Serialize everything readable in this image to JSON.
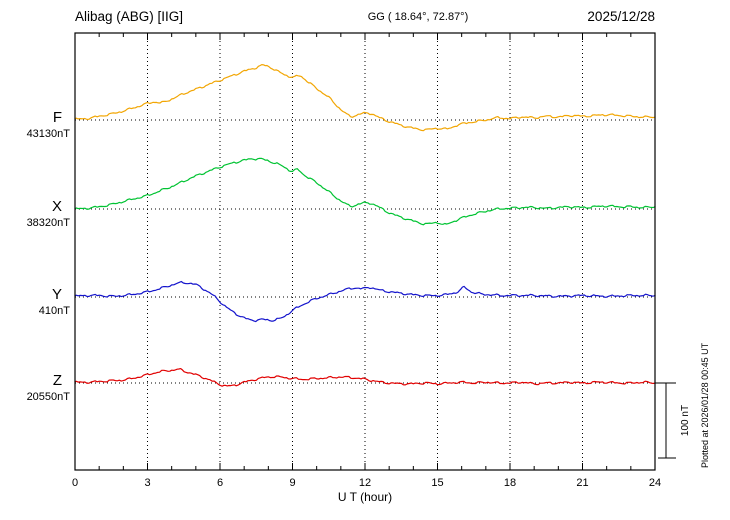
{
  "header": {
    "station": "Alibag (ABG)  [IIG]",
    "coords": "GG ( 18.64°, 72.87°)",
    "date": "2025/12/28"
  },
  "axis": {
    "x_ticks": [
      "0",
      "3",
      "6",
      "9",
      "12",
      "15",
      "18",
      "21",
      "24"
    ],
    "x_label": "U T (hour)"
  },
  "scalebar": {
    "label": "100 nT",
    "nT": 100
  },
  "footer_note": "Plotted at 2026/01/28 00:45 UT",
  "chart_data": {
    "type": "line",
    "title": "Alibag (ABG) [IIG] magnetogram 2025/12/28",
    "xlabel": "U T (hour)",
    "x_range": [
      0,
      24
    ],
    "x_tick_hours": [
      0,
      3,
      6,
      9,
      12,
      15,
      18,
      21,
      24
    ],
    "units": "nT offset from channel baseline",
    "scale_bar_nT": 100,
    "grid": "dotted vertical every 3 h, dotted horizontal baseline per channel",
    "series": [
      {
        "id": "F",
        "name": "F",
        "baseline_nT": 43130,
        "baseline_label": "43130nT",
        "color": "#f2a604",
        "points": [
          [
            0,
            1
          ],
          [
            0.5,
            2
          ],
          [
            1,
            5
          ],
          [
            1.5,
            8
          ],
          [
            2,
            12
          ],
          [
            2.5,
            17
          ],
          [
            3,
            22
          ],
          [
            3.3,
            24
          ],
          [
            3.6,
            23
          ],
          [
            4,
            28
          ],
          [
            4.5,
            35
          ],
          [
            5,
            41
          ],
          [
            5.5,
            47
          ],
          [
            6,
            53
          ],
          [
            6.5,
            59
          ],
          [
            7,
            65
          ],
          [
            7.5,
            70
          ],
          [
            7.8,
            73
          ],
          [
            8.1,
            70
          ],
          [
            8.5,
            63
          ],
          [
            9,
            57
          ],
          [
            9.3,
            59
          ],
          [
            9.6,
            52
          ],
          [
            10,
            42
          ],
          [
            10.5,
            30
          ],
          [
            11,
            14
          ],
          [
            11.4,
            5
          ],
          [
            11.8,
            8
          ],
          [
            12.2,
            9
          ],
          [
            12.6,
            3
          ],
          [
            13,
            -2
          ],
          [
            13.5,
            -7
          ],
          [
            14,
            -11
          ],
          [
            14.5,
            -13
          ],
          [
            15,
            -11
          ],
          [
            15.4,
            -12
          ],
          [
            15.8,
            -7
          ],
          [
            16.2,
            -4
          ],
          [
            16.6,
            -2
          ],
          [
            17,
            0
          ],
          [
            17.5,
            3
          ],
          [
            18,
            2
          ],
          [
            18.5,
            4
          ],
          [
            19,
            3
          ],
          [
            19.5,
            5
          ],
          [
            20,
            4
          ],
          [
            20.5,
            6
          ],
          [
            21,
            5
          ],
          [
            21.5,
            6
          ],
          [
            22,
            7
          ],
          [
            22.5,
            6
          ],
          [
            23,
            5
          ],
          [
            23.5,
            4
          ],
          [
            24,
            4
          ]
        ]
      },
      {
        "id": "X",
        "name": "X",
        "baseline_nT": 38320,
        "baseline_label": "38320nT",
        "color": "#00c332",
        "points": [
          [
            0,
            0
          ],
          [
            0.5,
            1
          ],
          [
            1,
            3
          ],
          [
            1.5,
            6
          ],
          [
            2,
            10
          ],
          [
            2.5,
            14
          ],
          [
            3,
            18
          ],
          [
            3.5,
            24
          ],
          [
            4,
            30
          ],
          [
            4.5,
            37
          ],
          [
            5,
            44
          ],
          [
            5.5,
            50
          ],
          [
            6,
            56
          ],
          [
            6.5,
            61
          ],
          [
            7,
            65
          ],
          [
            7.4,
            67
          ],
          [
            7.8,
            66
          ],
          [
            8.2,
            62
          ],
          [
            8.6,
            57
          ],
          [
            9,
            50
          ],
          [
            9.2,
            53
          ],
          [
            9.5,
            45
          ],
          [
            10,
            35
          ],
          [
            10.5,
            23
          ],
          [
            11,
            11
          ],
          [
            11.4,
            4
          ],
          [
            11.8,
            7
          ],
          [
            12.2,
            8
          ],
          [
            12.6,
            2
          ],
          [
            13,
            -5
          ],
          [
            13.5,
            -11
          ],
          [
            14,
            -16
          ],
          [
            14.5,
            -20
          ],
          [
            15,
            -18
          ],
          [
            15.3,
            -21
          ],
          [
            15.7,
            -16
          ],
          [
            16.1,
            -11
          ],
          [
            16.5,
            -7
          ],
          [
            17,
            -3
          ],
          [
            17.5,
            0
          ],
          [
            18,
            1
          ],
          [
            18.5,
            2
          ],
          [
            19,
            2
          ],
          [
            19.5,
            1
          ],
          [
            20,
            2
          ],
          [
            20.5,
            3
          ],
          [
            21,
            2
          ],
          [
            21.5,
            3
          ],
          [
            22,
            4
          ],
          [
            22.5,
            3
          ],
          [
            23,
            3
          ],
          [
            23.5,
            2
          ],
          [
            24,
            3
          ]
        ]
      },
      {
        "id": "Y",
        "name": "Y",
        "baseline_nT": 410,
        "baseline_label": "410nT",
        "color": "#1414cc",
        "points": [
          [
            0,
            1
          ],
          [
            0.5,
            2
          ],
          [
            1,
            2
          ],
          [
            1.5,
            1
          ],
          [
            2,
            2
          ],
          [
            2.5,
            4
          ],
          [
            3,
            7
          ],
          [
            3.5,
            11
          ],
          [
            4,
            16
          ],
          [
            4.4,
            19
          ],
          [
            4.8,
            18
          ],
          [
            5.1,
            15
          ],
          [
            5.4,
            9
          ],
          [
            5.8,
            0
          ],
          [
            6.2,
            -12
          ],
          [
            6.6,
            -21
          ],
          [
            7,
            -28
          ],
          [
            7.4,
            -31
          ],
          [
            7.8,
            -30
          ],
          [
            8.2,
            -31
          ],
          [
            8.6,
            -27
          ],
          [
            9,
            -18
          ],
          [
            9.5,
            -9
          ],
          [
            10,
            -2
          ],
          [
            10.5,
            3
          ],
          [
            11,
            8
          ],
          [
            11.5,
            12
          ],
          [
            11.9,
            11
          ],
          [
            12.2,
            13
          ],
          [
            12.5,
            10
          ],
          [
            13,
            7
          ],
          [
            13.5,
            5
          ],
          [
            14,
            3
          ],
          [
            14.5,
            2
          ],
          [
            15,
            2
          ],
          [
            15.5,
            4
          ],
          [
            15.9,
            8
          ],
          [
            16.1,
            13
          ],
          [
            16.4,
            7
          ],
          [
            16.8,
            4
          ],
          [
            17.2,
            3
          ],
          [
            17.6,
            2
          ],
          [
            18,
            2
          ],
          [
            19,
            2
          ],
          [
            20,
            1
          ],
          [
            21,
            2
          ],
          [
            22,
            1
          ],
          [
            23,
            2
          ],
          [
            24,
            2
          ]
        ]
      },
      {
        "id": "Z",
        "name": "Z",
        "baseline_nT": 20550,
        "baseline_label": "20550nT",
        "color": "#e10000",
        "points": [
          [
            0,
            1
          ],
          [
            0.5,
            1
          ],
          [
            1,
            2
          ],
          [
            1.5,
            3
          ],
          [
            2,
            4
          ],
          [
            2.5,
            7
          ],
          [
            3,
            11
          ],
          [
            3.5,
            15
          ],
          [
            4,
            17
          ],
          [
            4.3,
            18
          ],
          [
            4.6,
            15
          ],
          [
            5,
            11
          ],
          [
            5.5,
            5
          ],
          [
            6,
            -2
          ],
          [
            6.3,
            -4
          ],
          [
            6.6,
            -3
          ],
          [
            7,
            1
          ],
          [
            7.5,
            5
          ],
          [
            8,
            8
          ],
          [
            8.5,
            8
          ],
          [
            9,
            6
          ],
          [
            9.5,
            5
          ],
          [
            10,
            6
          ],
          [
            10.5,
            7
          ],
          [
            11,
            8
          ],
          [
            11.5,
            7
          ],
          [
            12,
            5
          ],
          [
            12.5,
            2
          ],
          [
            13,
            0
          ],
          [
            13.5,
            -1
          ],
          [
            14,
            -1
          ],
          [
            14.5,
            0
          ],
          [
            15,
            -1
          ],
          [
            15.5,
            0
          ],
          [
            16,
            1
          ],
          [
            16.5,
            0
          ],
          [
            17,
            1
          ],
          [
            17.5,
            0
          ],
          [
            18,
            0
          ],
          [
            18.5,
            1
          ],
          [
            19,
            -1
          ],
          [
            19.5,
            0
          ],
          [
            20,
            0
          ],
          [
            20.5,
            1
          ],
          [
            21,
            0
          ],
          [
            21.5,
            1
          ],
          [
            22,
            1
          ],
          [
            22.5,
            0
          ],
          [
            23,
            0
          ],
          [
            23.5,
            1
          ],
          [
            24,
            0
          ]
        ]
      }
    ]
  }
}
